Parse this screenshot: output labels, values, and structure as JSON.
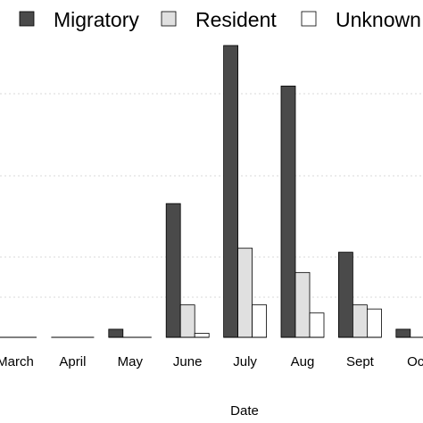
{
  "chart_data": {
    "type": "bar",
    "title": "",
    "xlabel": "Date",
    "ylabel": "",
    "categories": [
      "March",
      "April",
      "May",
      "June",
      "July",
      "Aug",
      "Sept",
      "Oct"
    ],
    "series": [
      {
        "name": "Migratory",
        "color": "#4a4a4a",
        "values": [
          0,
          0,
          2,
          33,
          72,
          62,
          21,
          2
        ]
      },
      {
        "name": "Resident",
        "color": "#e0e0e0",
        "values": [
          0,
          0,
          0,
          8,
          22,
          16,
          8,
          0
        ]
      },
      {
        "name": "Unknown",
        "color": "#ffffff",
        "values": [
          0,
          0,
          0,
          1,
          8,
          6,
          7,
          0
        ]
      }
    ],
    "ylim": [
      0,
      72
    ],
    "grid": true,
    "legend_position": "top"
  }
}
